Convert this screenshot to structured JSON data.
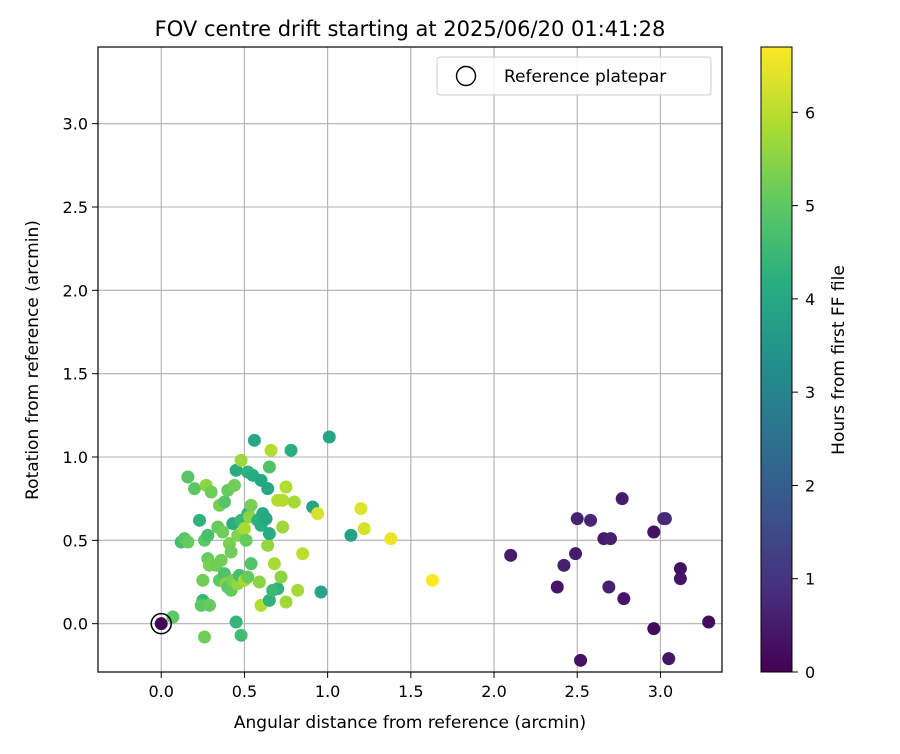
{
  "chart_data": {
    "type": "scatter",
    "title": "FOV centre drift starting at 2025/06/20 01:41:28",
    "xlabel": "Angular distance from reference (arcmin)",
    "ylabel": "Rotation from reference (arcmin)",
    "xlim": [
      -0.38,
      3.37
    ],
    "ylim": [
      -0.29,
      3.46
    ],
    "xticks": [
      "0.0",
      "0.5",
      "1.0",
      "1.5",
      "2.0",
      "2.5",
      "3.0"
    ],
    "xtick_values": [
      0,
      0.5,
      1,
      1.5,
      2,
      2.5,
      3
    ],
    "yticks": [
      "0.0",
      "0.5",
      "1.0",
      "1.5",
      "2.0",
      "2.5",
      "3.0"
    ],
    "ytick_values": [
      0,
      0.5,
      1,
      1.5,
      2,
      2.5,
      3
    ],
    "grid": true,
    "legend": {
      "position": "top-right",
      "entries": [
        {
          "label": "Reference platepar",
          "marker": "open-circle"
        }
      ]
    },
    "reference_point": [
      0,
      0
    ],
    "colorbar": {
      "label": "Hours from first FF file",
      "range": [
        0,
        6.7
      ],
      "ticks": [
        "0",
        "1",
        "2",
        "3",
        "4",
        "5",
        "6"
      ],
      "tick_values": [
        0,
        1,
        2,
        3,
        4,
        5,
        6
      ],
      "colormap": "viridis"
    },
    "points": [
      [
        0.0,
        0.0,
        0.05
      ],
      [
        2.1,
        0.41,
        0.5
      ],
      [
        2.38,
        0.22,
        0.4
      ],
      [
        2.42,
        0.35,
        0.6
      ],
      [
        2.49,
        0.42,
        0.5
      ],
      [
        2.5,
        0.63,
        0.6
      ],
      [
        2.52,
        -0.22,
        0.3
      ],
      [
        2.58,
        0.62,
        0.7
      ],
      [
        2.66,
        0.51,
        0.5
      ],
      [
        2.7,
        0.51,
        0.6
      ],
      [
        2.69,
        0.22,
        0.6
      ],
      [
        2.77,
        0.75,
        0.5
      ],
      [
        2.78,
        0.15,
        0.4
      ],
      [
        2.96,
        0.55,
        0.3
      ],
      [
        2.96,
        -0.03,
        0.2
      ],
      [
        3.02,
        0.63,
        0.7
      ],
      [
        3.03,
        0.63,
        0.8
      ],
      [
        3.05,
        -0.21,
        0.4
      ],
      [
        3.12,
        0.33,
        0.3
      ],
      [
        3.12,
        0.27,
        0.4
      ],
      [
        3.29,
        0.01,
        0.2
      ],
      [
        0.56,
        1.1,
        4.0
      ],
      [
        1.01,
        1.12,
        3.9
      ],
      [
        0.78,
        1.04,
        4.2
      ],
      [
        0.16,
        0.88,
        4.9
      ],
      [
        0.2,
        0.81,
        5.0
      ],
      [
        0.23,
        0.62,
        4.3
      ],
      [
        0.27,
        0.83,
        5.5
      ],
      [
        0.3,
        0.79,
        5.2
      ],
      [
        0.35,
        0.71,
        5.3
      ],
      [
        0.38,
        0.73,
        4.9
      ],
      [
        0.4,
        0.8,
        5.1
      ],
      [
        0.44,
        0.83,
        5.2
      ],
      [
        0.45,
        0.92,
        4.1
      ],
      [
        0.48,
        0.98,
        5.7
      ],
      [
        0.52,
        0.91,
        4.3
      ],
      [
        0.55,
        0.89,
        4.1
      ],
      [
        0.6,
        0.86,
        4.0
      ],
      [
        0.64,
        0.81,
        4.0
      ],
      [
        0.65,
        0.94,
        4.8
      ],
      [
        0.66,
        1.04,
        5.9
      ],
      [
        0.7,
        0.74,
        5.9
      ],
      [
        0.73,
        0.74,
        5.9
      ],
      [
        0.75,
        0.82,
        5.9
      ],
      [
        0.8,
        0.73,
        5.8
      ],
      [
        0.91,
        0.7,
        3.9
      ],
      [
        0.94,
        0.66,
        6.3
      ],
      [
        1.14,
        0.53,
        3.8
      ],
      [
        1.2,
        0.69,
        6.4
      ],
      [
        1.22,
        0.57,
        6.3
      ],
      [
        1.38,
        0.51,
        6.5
      ],
      [
        1.63,
        0.26,
        6.7
      ],
      [
        0.12,
        0.49,
        4.6
      ],
      [
        0.14,
        0.51,
        4.9
      ],
      [
        0.16,
        0.49,
        5.1
      ],
      [
        0.26,
        0.5,
        5.0
      ],
      [
        0.28,
        0.53,
        4.7
      ],
      [
        0.34,
        0.58,
        5.1
      ],
      [
        0.37,
        0.55,
        5.2
      ],
      [
        0.41,
        0.48,
        5.3
      ],
      [
        0.42,
        0.43,
        5.2
      ],
      [
        0.43,
        0.6,
        4.2
      ],
      [
        0.46,
        0.53,
        5.4
      ],
      [
        0.48,
        0.62,
        4.5
      ],
      [
        0.5,
        0.57,
        5.8
      ],
      [
        0.51,
        0.5,
        5.1
      ],
      [
        0.52,
        0.66,
        4.4
      ],
      [
        0.53,
        0.64,
        5.5
      ],
      [
        0.54,
        0.71,
        5.3
      ],
      [
        0.58,
        0.62,
        4.3
      ],
      [
        0.6,
        0.59,
        4.2
      ],
      [
        0.61,
        0.66,
        4.1
      ],
      [
        0.63,
        0.63,
        4.0
      ],
      [
        0.64,
        0.47,
        5.6
      ],
      [
        0.65,
        0.54,
        4.1
      ],
      [
        0.68,
        0.36,
        5.8
      ],
      [
        0.7,
        0.21,
        4.3
      ],
      [
        0.72,
        0.28,
        5.5
      ],
      [
        0.73,
        0.58,
        5.7
      ],
      [
        0.75,
        0.13,
        5.7
      ],
      [
        0.82,
        0.2,
        5.8
      ],
      [
        0.85,
        0.42,
        6.0
      ],
      [
        0.96,
        0.19,
        3.9
      ],
      [
        0.28,
        0.39,
        5.1
      ],
      [
        0.29,
        0.35,
        5.3
      ],
      [
        0.33,
        0.35,
        5.2
      ],
      [
        0.35,
        0.26,
        5.0
      ],
      [
        0.36,
        0.38,
        5.2
      ],
      [
        0.38,
        0.3,
        4.8
      ],
      [
        0.39,
        0.24,
        5.5
      ],
      [
        0.4,
        0.22,
        5.0
      ],
      [
        0.42,
        0.2,
        5.1
      ],
      [
        0.43,
        0.26,
        5.3
      ],
      [
        0.46,
        0.24,
        5.6
      ],
      [
        0.47,
        0.29,
        4.7
      ],
      [
        0.5,
        0.26,
        5.8
      ],
      [
        0.52,
        0.28,
        5.1
      ],
      [
        0.54,
        0.36,
        4.8
      ],
      [
        0.59,
        0.25,
        5.5
      ],
      [
        0.6,
        0.11,
        5.9
      ],
      [
        0.65,
        0.14,
        4.3
      ],
      [
        0.67,
        0.2,
        4.5
      ],
      [
        0.25,
        0.26,
        5.2
      ],
      [
        0.25,
        0.14,
        4.5
      ],
      [
        0.24,
        0.11,
        5.0
      ],
      [
        0.29,
        0.11,
        5.1
      ],
      [
        0.45,
        0.01,
        4.4
      ],
      [
        0.48,
        -0.07,
        4.6
      ],
      [
        0.26,
        -0.08,
        5.2
      ],
      [
        0.07,
        0.04,
        5.0
      ]
    ]
  }
}
